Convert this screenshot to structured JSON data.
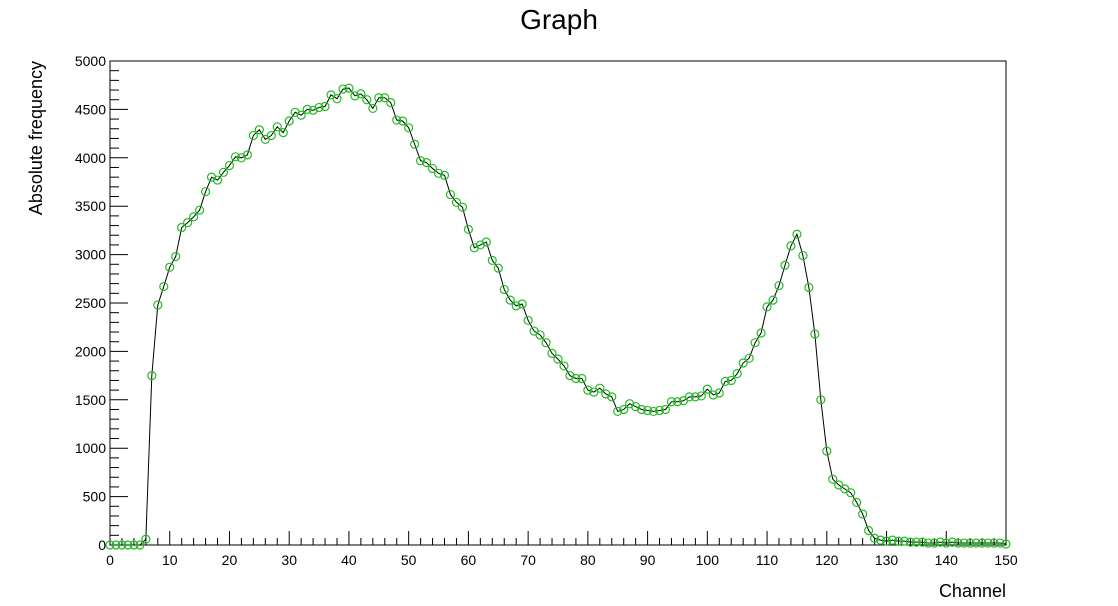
{
  "chart_data": {
    "type": "line",
    "title": "Graph",
    "xlabel": "Channel",
    "ylabel": "Absolute frequency",
    "xlim": [
      0,
      150
    ],
    "ylim": [
      0,
      5000
    ],
    "x_ticks": [
      0,
      10,
      20,
      30,
      40,
      50,
      60,
      70,
      80,
      90,
      100,
      110,
      120,
      130,
      140,
      150
    ],
    "y_ticks": [
      0,
      500,
      1000,
      1500,
      2000,
      2500,
      3000,
      3500,
      4000,
      4500,
      5000
    ],
    "grid": false,
    "legend": "none",
    "colors": {
      "line": "#000000",
      "marker": "#22bb22"
    },
    "series": [
      {
        "x": [
          0,
          1,
          2,
          3,
          4,
          5,
          6,
          7,
          8,
          9,
          10,
          11,
          12,
          13,
          14,
          15,
          16,
          17,
          18,
          19,
          20,
          21,
          22,
          23,
          24,
          25,
          26,
          27,
          28,
          29,
          30,
          31,
          32,
          33,
          34,
          35,
          36,
          37,
          38,
          39,
          40,
          41,
          42,
          43,
          44,
          45,
          46,
          47,
          48,
          49,
          50,
          51,
          52,
          53,
          54,
          55,
          56,
          57,
          58,
          59,
          60,
          61,
          62,
          63,
          64,
          65,
          66,
          67,
          68,
          69,
          70,
          71,
          72,
          73,
          74,
          75,
          76,
          77,
          78,
          79,
          80,
          81,
          82,
          83,
          84,
          85,
          86,
          87,
          88,
          89,
          90,
          91,
          92,
          93,
          94,
          95,
          96,
          97,
          98,
          99,
          100,
          101,
          102,
          103,
          104,
          105,
          106,
          107,
          108,
          109,
          110,
          111,
          112,
          113,
          114,
          115,
          116,
          117,
          118,
          119,
          120,
          121,
          122,
          123,
          124,
          125,
          126,
          127,
          128,
          129,
          130,
          131,
          132,
          133,
          134,
          135,
          136,
          137,
          138,
          139,
          140,
          141,
          142,
          143,
          144,
          145,
          146,
          147,
          148,
          149,
          150
        ],
        "y": [
          0,
          0,
          0,
          0,
          0,
          0,
          60,
          1750,
          2480,
          2670,
          2870,
          2980,
          3280,
          3330,
          3390,
          3460,
          3650,
          3800,
          3770,
          3850,
          3920,
          4010,
          4000,
          4030,
          4230,
          4290,
          4190,
          4230,
          4320,
          4260,
          4380,
          4470,
          4440,
          4500,
          4490,
          4520,
          4530,
          4650,
          4610,
          4710,
          4720,
          4640,
          4660,
          4600,
          4510,
          4620,
          4620,
          4570,
          4390,
          4380,
          4310,
          4140,
          3970,
          3950,
          3890,
          3840,
          3820,
          3620,
          3540,
          3490,
          3260,
          3070,
          3100,
          3130,
          2940,
          2860,
          2640,
          2530,
          2470,
          2490,
          2320,
          2210,
          2170,
          2090,
          1980,
          1920,
          1850,
          1750,
          1720,
          1720,
          1600,
          1580,
          1620,
          1560,
          1530,
          1380,
          1400,
          1460,
          1430,
          1400,
          1390,
          1380,
          1390,
          1400,
          1480,
          1480,
          1490,
          1530,
          1530,
          1540,
          1610,
          1550,
          1570,
          1690,
          1700,
          1770,
          1880,
          1930,
          2090,
          2190,
          2460,
          2530,
          2680,
          2890,
          3090,
          3210,
          2990,
          2660,
          2180,
          1500,
          970,
          680,
          620,
          580,
          540,
          440,
          320,
          150,
          70,
          50,
          40,
          50,
          40,
          40,
          30,
          30,
          30,
          20,
          20,
          30,
          20,
          30,
          20,
          20,
          20,
          20,
          20,
          20,
          20,
          20,
          10
        ]
      }
    ]
  }
}
